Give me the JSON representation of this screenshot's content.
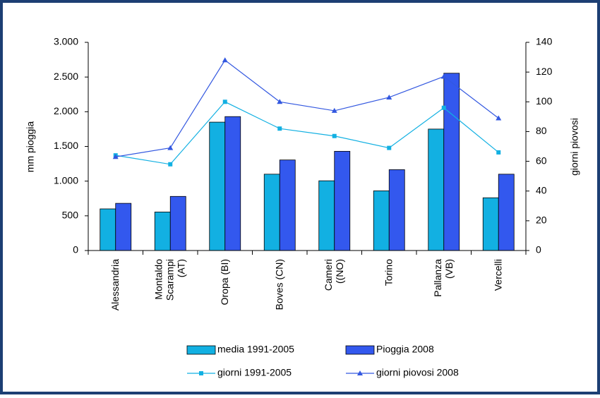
{
  "chart_data": {
    "type": "bar-line",
    "ylabel": "mm pioggia",
    "y2label": "giorni piovosi",
    "categories": [
      "Alessandria",
      "Montaldo\nScarampi\n(AT)",
      "Oropa (BI)",
      "Boves (CN)",
      "Cameri\n((NO)",
      "Torino",
      "Pallanza\n(VB)",
      "Vercelli"
    ],
    "series": [
      {
        "name": "media 1991-2005",
        "type": "bar",
        "color": "#12b0e2",
        "values": [
          600,
          555,
          1850,
          1100,
          1005,
          860,
          1750,
          760
        ]
      },
      {
        "name": "Pioggia 2008",
        "type": "bar",
        "color": "#3358ee",
        "values": [
          680,
          780,
          1930,
          1305,
          1430,
          1165,
          2555,
          1100
        ]
      },
      {
        "name": "giorni 1991-2005",
        "type": "line",
        "marker": "square",
        "axis": "y2",
        "color": "#12b0e2",
        "values": [
          64,
          58,
          100,
          82,
          77,
          69,
          96,
          66
        ]
      },
      {
        "name": "giorni piovosi 2008",
        "type": "line",
        "marker": "triangle",
        "axis": "y2",
        "color": "#3358e0",
        "values": [
          63,
          69,
          128,
          100,
          94,
          103,
          117,
          89
        ]
      }
    ],
    "ylim": [
      0,
      3000
    ],
    "yticks": [
      0,
      500,
      {
        "value": 1000,
        "label": "1.000"
      },
      {
        "value": 1500,
        "label": "1.500"
      },
      {
        "value": 2000,
        "label": "2.000"
      },
      {
        "value": 2500,
        "label": "2.500"
      },
      {
        "value": 3000,
        "label": "3.000"
      }
    ],
    "y2lim": [
      0,
      140
    ],
    "y2ticks": [
      0,
      20,
      40,
      60,
      80,
      100,
      120,
      140
    ]
  }
}
